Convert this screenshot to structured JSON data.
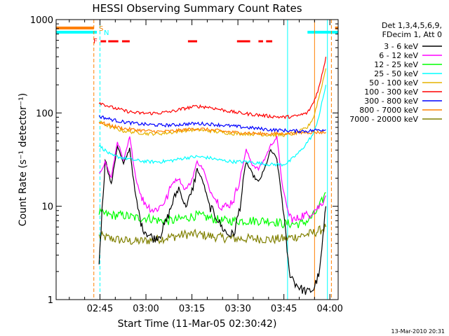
{
  "chart_data": {
    "type": "line",
    "title": "HESSI Observing Summary Count Rates",
    "xlabel": "Start Time (11-Mar-05 02:30:42)",
    "ylabel": "Count Rate (s⁻¹ detector⁻¹)",
    "y_scale": "log",
    "ylim": [
      1,
      1000
    ],
    "y_ticks": [
      "1",
      "10",
      "100",
      "1000"
    ],
    "x_unit": "minutes after 02:30:42",
    "xlim": [
      0,
      92
    ],
    "x_ticks": [
      {
        "label": "02:45",
        "value": 14.3
      },
      {
        "label": "03:00",
        "value": 29.3
      },
      {
        "label": "03:15",
        "value": 44.3
      },
      {
        "label": "03:30",
        "value": 59.3
      },
      {
        "label": "03:45",
        "value": 74.3
      },
      {
        "label": "04:00",
        "value": 89.3
      }
    ],
    "legend_header": [
      "Det 1,3,4,5,6,9,",
      "FDecim 1, Att 0"
    ],
    "legend_position": "right",
    "series": [
      {
        "name": "3 - 6 keV",
        "color": "#000000",
        "x": [
          14,
          16,
          18,
          20,
          22,
          24,
          26,
          28,
          30,
          32,
          34,
          36,
          38,
          40,
          42,
          44,
          46,
          48,
          50,
          52,
          54,
          56,
          58,
          60,
          62,
          64,
          66,
          68,
          70,
          72,
          74,
          76,
          78,
          80,
          82,
          84,
          86,
          88
        ],
        "values": [
          2.5,
          32,
          17,
          45,
          28,
          42,
          12,
          6,
          5,
          4.5,
          5,
          7,
          11,
          16,
          10,
          13,
          25,
          18,
          10,
          8,
          6,
          5,
          5,
          10,
          30,
          22,
          18,
          25,
          40,
          32,
          10,
          2,
          1.5,
          1.3,
          1.2,
          1.3,
          2,
          10
        ]
      },
      {
        "name": "6 - 12 keV",
        "color": "#ff00ff",
        "x": [
          14,
          16,
          18,
          20,
          22,
          24,
          26,
          28,
          30,
          32,
          34,
          36,
          38,
          40,
          42,
          44,
          46,
          48,
          50,
          52,
          54,
          56,
          58,
          60,
          62,
          64,
          66,
          68,
          70,
          72,
          74,
          76,
          78,
          80,
          82,
          84,
          86,
          88
        ],
        "values": [
          22,
          30,
          20,
          50,
          30,
          55,
          20,
          12,
          10,
          9,
          10,
          12,
          18,
          20,
          15,
          18,
          30,
          25,
          15,
          12,
          10,
          10,
          12,
          20,
          40,
          28,
          25,
          32,
          45,
          55,
          15,
          8,
          7,
          8,
          8,
          9,
          10,
          13
        ]
      },
      {
        "name": "12 - 25 keV",
        "color": "#00ff00",
        "x": [
          14,
          18,
          22,
          26,
          30,
          34,
          38,
          42,
          46,
          50,
          54,
          58,
          62,
          66,
          70,
          74,
          78,
          80,
          82,
          84,
          86,
          88
        ],
        "values": [
          8.5,
          8,
          8,
          7.5,
          7.5,
          7,
          7,
          7.5,
          8,
          7.5,
          7,
          7,
          7,
          7,
          7,
          6.5,
          6.5,
          6.5,
          7,
          8,
          10,
          14
        ]
      },
      {
        "name": "25 - 50 keV",
        "color": "#00ffff",
        "x": [
          14,
          18,
          22,
          26,
          30,
          34,
          38,
          42,
          46,
          50,
          54,
          58,
          62,
          66,
          70,
          74,
          76,
          80,
          84,
          86,
          88
        ],
        "values": [
          45,
          35,
          33,
          31,
          30,
          30,
          31,
          33,
          34,
          33,
          31,
          30,
          30,
          29,
          28,
          28,
          30,
          40,
          60,
          100,
          200
        ]
      },
      {
        "name": "50 - 100 keV",
        "color": "#e6b400",
        "x": [
          14,
          18,
          22,
          26,
          30,
          34,
          38,
          42,
          46,
          50,
          54,
          58,
          62,
          66,
          70,
          74,
          78,
          82,
          84,
          86,
          88
        ],
        "values": [
          80,
          70,
          64,
          62,
          60,
          60,
          62,
          65,
          66,
          64,
          62,
          60,
          60,
          59,
          58,
          58,
          60,
          70,
          90,
          160,
          300
        ]
      },
      {
        "name": "100 - 300 keV",
        "color": "#ff0000",
        "x": [
          14,
          18,
          22,
          26,
          30,
          34,
          38,
          42,
          46,
          50,
          54,
          58,
          62,
          66,
          70,
          74,
          78,
          82,
          84,
          86,
          88
        ],
        "values": [
          130,
          115,
          106,
          100,
          99,
          100,
          104,
          112,
          118,
          115,
          108,
          102,
          98,
          95,
          92,
          90,
          92,
          100,
          130,
          200,
          400
        ]
      },
      {
        "name": "300 - 800 keV",
        "color": "#0000ff",
        "x": [
          14,
          18,
          22,
          26,
          30,
          34,
          38,
          42,
          46,
          50,
          54,
          58,
          62,
          66,
          70,
          74,
          78,
          82,
          84,
          86,
          88
        ],
        "values": [
          92,
          85,
          80,
          77,
          75,
          74,
          74,
          76,
          77,
          76,
          74,
          72,
          70,
          68,
          66,
          65,
          64,
          64,
          65,
          66,
          66
        ]
      },
      {
        "name": "800 - 7000 keV",
        "color": "#ff8000",
        "x": [
          14,
          18,
          22,
          26,
          30,
          34,
          38,
          42,
          46,
          50,
          54,
          58,
          62,
          66,
          70,
          74,
          78,
          82,
          84,
          86,
          88
        ],
        "values": [
          80,
          73,
          68,
          66,
          64,
          63,
          64,
          66,
          68,
          66,
          64,
          62,
          61,
          60,
          60,
          60,
          61,
          62,
          62,
          62,
          62
        ]
      },
      {
        "name": "7000 - 20000 keV",
        "color": "#808000",
        "x": [
          14,
          18,
          22,
          26,
          30,
          34,
          38,
          42,
          46,
          50,
          54,
          58,
          62,
          66,
          70,
          74,
          78,
          82,
          84,
          86,
          88
        ],
        "values": [
          4.8,
          4.5,
          4.3,
          4.2,
          4.3,
          4.5,
          4.7,
          5,
          5,
          4.8,
          4.6,
          4.5,
          4.5,
          4.5,
          4.4,
          4.5,
          4.7,
          5,
          5.2,
          5.5,
          6
        ]
      }
    ],
    "flag_marks": [
      {
        "label": "S",
        "color": "#ff8000"
      },
      {
        "label": "N",
        "color": "#00ffff"
      },
      {
        "label": "F",
        "color": "#ff0000"
      }
    ],
    "flag_lines": {
      "S": {
        "color": "#ff8000",
        "segments": [
          [
            0,
            12.3
          ],
          [
            91,
            92
          ]
        ]
      },
      "N": {
        "color": "#00ffff",
        "segments": [
          [
            0,
            13.3
          ],
          [
            82,
            92
          ]
        ]
      },
      "F": {
        "color": "#ff0000",
        "segments": [
          [
            14.5,
            16.3
          ],
          [
            17,
            20.3
          ],
          [
            21.5,
            24
          ],
          [
            43,
            46
          ],
          [
            59,
            63.3
          ],
          [
            66,
            67.5
          ],
          [
            68.5,
            70.5
          ]
        ]
      }
    },
    "vertical_markers": [
      {
        "x": 12.3,
        "color": "#ff8000",
        "style": "dashed"
      },
      {
        "x": 14.3,
        "color": "#00ffff",
        "style": "dashed"
      },
      {
        "x": 75.5,
        "color": "#00ffff",
        "style": "solid"
      },
      {
        "x": 84.3,
        "color": "#ff8000",
        "style": "solid"
      },
      {
        "x": 88.5,
        "color": "#00ffff",
        "style": "solid"
      },
      {
        "x": 89.8,
        "color": "#ff8000",
        "style": "dashed"
      }
    ],
    "grid": false
  },
  "footer": {
    "timestamp": "13-Mar-2010 20:31"
  }
}
